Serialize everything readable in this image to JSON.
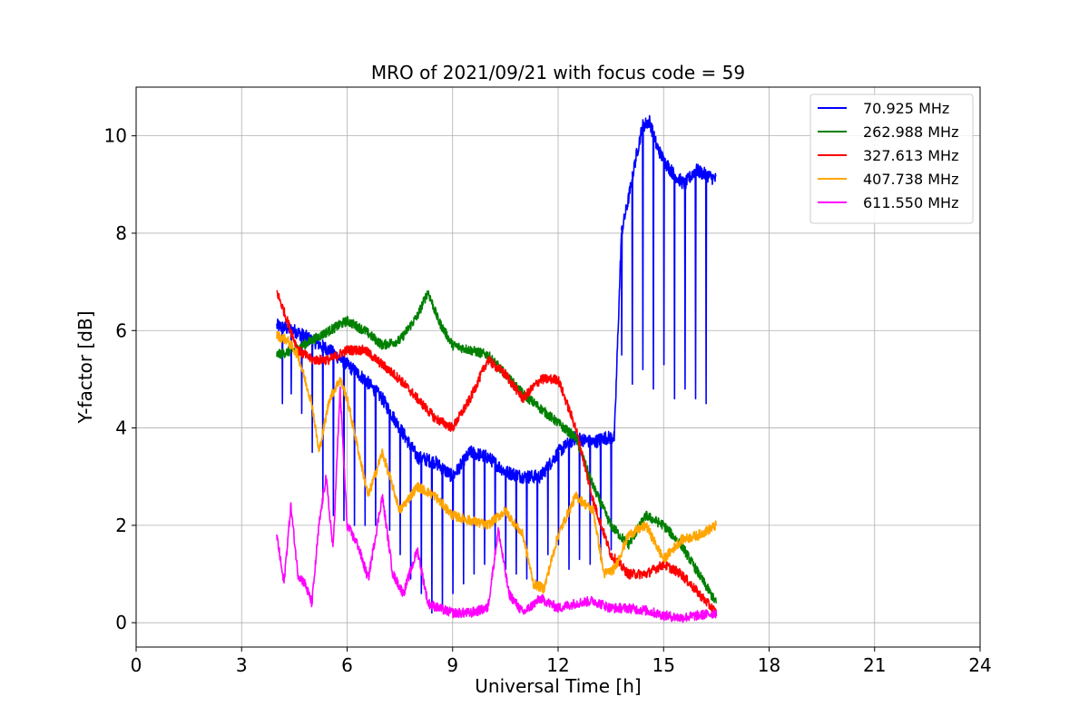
{
  "chart_data": {
    "type": "line",
    "title": "MRO of 2021/09/21 with focus code = 59",
    "xlabel": "Universal Time [h]",
    "ylabel": "Y-factor [dB]",
    "xlim": [
      0,
      24
    ],
    "ylim": [
      -0.5,
      11
    ],
    "xticks": [
      0,
      3,
      6,
      9,
      12,
      15,
      18,
      21,
      24
    ],
    "yticks": [
      0,
      2,
      4,
      6,
      8,
      10
    ],
    "grid": true,
    "legend_position": "top-right",
    "series": [
      {
        "name": " 70.925 MHz",
        "color": "#0000ff",
        "x": [
          4.0,
          4.5,
          5.0,
          5.5,
          6.0,
          6.5,
          7.0,
          7.5,
          8.0,
          8.5,
          9.0,
          9.5,
          10.0,
          10.5,
          11.0,
          11.5,
          12.0,
          12.5,
          13.0,
          13.3,
          13.6,
          13.8,
          14.0,
          14.2,
          14.4,
          14.6,
          14.8,
          15.0,
          15.3,
          15.6,
          15.9,
          16.2,
          16.5
        ],
        "y": [
          6.1,
          6.0,
          5.8,
          5.6,
          5.3,
          5.0,
          4.6,
          4.0,
          3.4,
          3.3,
          3.0,
          3.5,
          3.4,
          3.1,
          3.0,
          3.0,
          3.5,
          3.8,
          3.7,
          3.8,
          3.8,
          8.0,
          8.7,
          9.5,
          10.2,
          10.3,
          9.8,
          9.5,
          9.2,
          9.0,
          9.3,
          9.2,
          9.1
        ],
        "dips": [
          [
            4.15,
            4.5
          ],
          [
            4.4,
            4.7
          ],
          [
            4.7,
            4.3
          ],
          [
            5.0,
            3.5
          ],
          [
            5.3,
            2.5
          ],
          [
            5.6,
            2.2
          ],
          [
            5.9,
            2.1
          ],
          [
            6.2,
            2.0
          ],
          [
            6.5,
            2.0
          ],
          [
            6.8,
            2.0
          ],
          [
            7.2,
            1.9
          ],
          [
            7.5,
            1.4
          ],
          [
            7.8,
            0.9
          ],
          [
            8.1,
            0.6
          ],
          [
            8.4,
            0.2
          ],
          [
            8.7,
            0.3
          ],
          [
            9.0,
            0.6
          ],
          [
            9.3,
            0.8
          ],
          [
            9.6,
            1.0
          ],
          [
            9.9,
            1.2
          ],
          [
            10.2,
            1.5
          ],
          [
            10.5,
            1.1
          ],
          [
            10.8,
            1.0
          ],
          [
            11.1,
            0.9
          ],
          [
            11.4,
            0.8
          ],
          [
            11.7,
            1.4
          ],
          [
            12.0,
            1.6
          ],
          [
            12.3,
            1.1
          ],
          [
            12.6,
            1.3
          ],
          [
            12.9,
            1.2
          ],
          [
            13.2,
            1.3
          ],
          [
            13.5,
            1.5
          ],
          [
            13.8,
            5.5
          ],
          [
            14.1,
            4.9
          ],
          [
            14.4,
            5.2
          ],
          [
            14.7,
            4.8
          ],
          [
            15.0,
            5.3
          ],
          [
            15.3,
            4.6
          ],
          [
            15.6,
            4.8
          ],
          [
            15.9,
            4.6
          ],
          [
            16.2,
            4.5
          ]
        ]
      },
      {
        "name": "262.988 MHz",
        "color": "#008000",
        "x": [
          4.0,
          4.5,
          5.0,
          5.5,
          6.0,
          6.5,
          7.0,
          7.5,
          8.0,
          8.3,
          8.6,
          9.0,
          9.5,
          10.0,
          10.5,
          11.0,
          11.5,
          12.0,
          12.5,
          13.0,
          13.5,
          14.0,
          14.5,
          15.0,
          15.5,
          16.0,
          16.5
        ],
        "y": [
          5.5,
          5.6,
          5.8,
          6.0,
          6.2,
          6.0,
          5.7,
          5.8,
          6.3,
          6.8,
          6.2,
          5.7,
          5.6,
          5.5,
          5.1,
          4.7,
          4.4,
          4.1,
          3.8,
          2.8,
          2.0,
          1.6,
          2.2,
          2.0,
          1.6,
          1.0,
          0.4
        ]
      },
      {
        "name": "327.613 MHz",
        "color": "#ff0000",
        "x": [
          4.0,
          4.3,
          4.6,
          5.0,
          5.5,
          6.0,
          6.5,
          7.0,
          7.5,
          8.0,
          8.5,
          9.0,
          9.5,
          10.0,
          10.5,
          11.0,
          11.5,
          12.0,
          12.5,
          13.0,
          13.5,
          14.0,
          14.5,
          15.0,
          15.5,
          16.0,
          16.5
        ],
        "y": [
          6.8,
          6.2,
          5.6,
          5.4,
          5.4,
          5.6,
          5.6,
          5.3,
          5.0,
          4.6,
          4.2,
          4.0,
          4.6,
          5.4,
          5.1,
          4.6,
          5.0,
          5.0,
          4.0,
          2.5,
          1.4,
          1.0,
          1.0,
          1.2,
          1.0,
          0.6,
          0.2
        ]
      },
      {
        "name": "407.738 MHz",
        "color": "#ffa500",
        "x": [
          4.0,
          4.3,
          4.6,
          5.0,
          5.2,
          5.5,
          5.8,
          6.0,
          6.3,
          6.6,
          7.0,
          7.5,
          8.0,
          8.5,
          9.0,
          9.5,
          10.0,
          10.5,
          11.0,
          11.3,
          11.6,
          12.0,
          12.5,
          13.0,
          13.3,
          13.6,
          14.0,
          14.5,
          15.0,
          15.5,
          16.0,
          16.5
        ],
        "y": [
          5.9,
          5.8,
          5.5,
          4.5,
          3.5,
          4.6,
          5.0,
          4.6,
          3.6,
          2.6,
          3.5,
          2.3,
          2.8,
          2.6,
          2.2,
          2.1,
          2.0,
          2.3,
          1.8,
          0.8,
          0.7,
          1.8,
          2.6,
          2.3,
          1.0,
          1.1,
          1.8,
          2.0,
          1.3,
          1.7,
          1.8,
          2.0
        ]
      },
      {
        "name": "611.550 MHz",
        "color": "#ff00ff",
        "x": [
          4.0,
          4.2,
          4.4,
          4.6,
          4.8,
          5.0,
          5.2,
          5.4,
          5.6,
          5.8,
          6.0,
          6.3,
          6.6,
          7.0,
          7.3,
          7.6,
          8.0,
          8.3,
          8.6,
          9.0,
          9.5,
          10.0,
          10.3,
          10.6,
          11.0,
          11.5,
          12.0,
          12.5,
          13.0,
          13.5,
          14.0,
          14.5,
          15.0,
          15.5,
          16.0,
          16.5
        ],
        "y": [
          1.8,
          0.8,
          2.4,
          1.0,
          0.8,
          0.4,
          2.0,
          3.0,
          1.5,
          4.8,
          2.0,
          1.6,
          0.9,
          2.6,
          1.0,
          0.6,
          1.5,
          0.4,
          0.3,
          0.2,
          0.2,
          0.3,
          1.9,
          0.6,
          0.2,
          0.5,
          0.3,
          0.4,
          0.45,
          0.3,
          0.3,
          0.25,
          0.15,
          0.1,
          0.15,
          0.2
        ]
      }
    ]
  }
}
